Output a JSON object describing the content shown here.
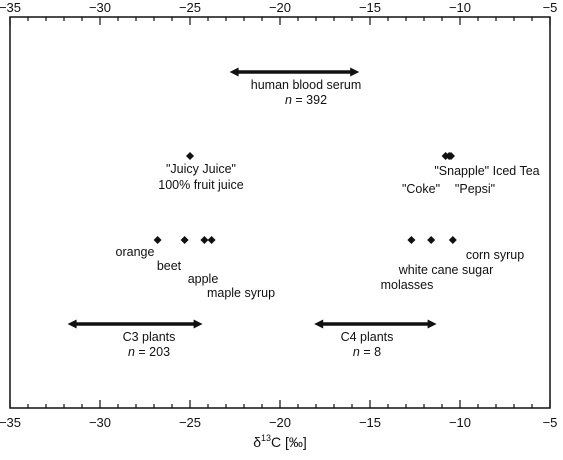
{
  "chart_data": {
    "type": "range-dot-plot",
    "xlim": [
      -35,
      -5
    ],
    "ticks": {
      "major": [
        -35,
        -30,
        -25,
        -20,
        -15,
        -10,
        -5
      ],
      "labels": [
        "−35",
        "−30",
        "−25",
        "−20",
        "−15",
        "−10",
        "−5"
      ],
      "minor_step": 1,
      "top_and_bottom": true
    },
    "xlabel": {
      "prefix": "δ",
      "sup": "13",
      "suffix": "C [‰]"
    },
    "grid": false,
    "ranges": [
      {
        "id": "blood",
        "x": [
          -22.8,
          -15.6
        ],
        "level": 1,
        "label": [
          "human blood serum",
          "n = 392"
        ]
      },
      {
        "id": "c3",
        "x": [
          -31.8,
          -24.3
        ],
        "level": 6,
        "label": [
          "C3 plants",
          "n = 203"
        ]
      },
      {
        "id": "c4",
        "x": [
          -18.1,
          -11.3
        ],
        "level": 6,
        "label": [
          "C4 plants",
          "n = 8"
        ]
      }
    ],
    "points": [
      {
        "name": "\"Juicy Juice\" 100% fruit juice",
        "x": -25.0,
        "level": 2
      },
      {
        "name": "\"Snapple\" Iced Tea",
        "x": -10.6,
        "level": 2
      },
      {
        "name": "\"Coke\"",
        "x": -10.8,
        "level": 2
      },
      {
        "name": "\"Pepsi\"",
        "x": -10.5,
        "level": 2
      },
      {
        "name": "orange",
        "x": -26.8,
        "level": 4
      },
      {
        "name": "beet",
        "x": -25.3,
        "level": 4
      },
      {
        "name": "apple",
        "x": -24.2,
        "level": 4
      },
      {
        "name": "maple syrup",
        "x": -23.8,
        "level": 4
      },
      {
        "name": "molasses",
        "x": -12.7,
        "level": 4
      },
      {
        "name": "white cane sugar",
        "x": -11.6,
        "level": 4
      },
      {
        "name": "corn syrup",
        "x": -10.4,
        "level": 4
      }
    ],
    "labels": {
      "juicy_1": "\"Juicy Juice\"",
      "juicy_2": "100% fruit juice",
      "snapple": "\"Snapple\" Iced Tea",
      "coke": "\"Coke\"",
      "pepsi": "\"Pepsi\"",
      "orange": "orange",
      "beet": "beet",
      "apple": "apple",
      "maple": "maple syrup",
      "corn": "corn syrup",
      "sugar": "white cane sugar",
      "molasses": "molasses",
      "blood_1": "human blood serum",
      "blood_2": "n = 392",
      "c3_1": "C3 plants",
      "c3_2": "n = 203",
      "c4_1": "C4 plants",
      "c4_2": "n = 8"
    }
  }
}
